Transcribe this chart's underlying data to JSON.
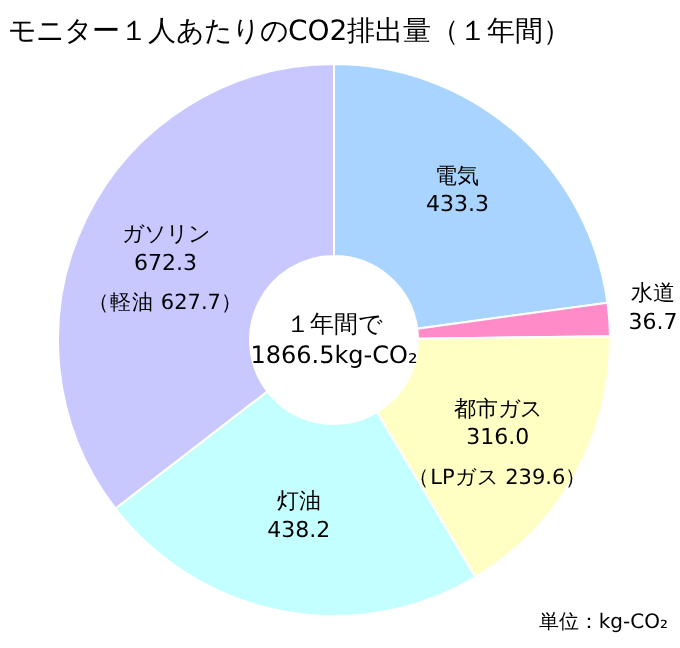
{
  "chart_data": {
    "type": "donut",
    "title": "モニター１人あたりのCO2排出量（１年間）",
    "categories": [
      "電気",
      "水道",
      "都市ガス",
      "灯油",
      "ガソリン"
    ],
    "values": [
      433.3,
      36.7,
      316.0,
      438.2,
      672.3
    ],
    "colors": [
      "#a8d4ff",
      "#ff8cc8",
      "#ffffc4",
      "#c4ffff",
      "#c8c8ff"
    ],
    "value_labels": [
      "433.3",
      "36.7",
      "316.0",
      "438.2",
      "672.3"
    ],
    "annotations": [
      "１年間で\n1866.5kg-CO₂",
      "単位：kg-CO₂",
      {
        "text": "（LPガス 239.6）",
        "x": "都市ガス"
      },
      {
        "text": "（軽油 627.7）",
        "x": "ガソリン"
      }
    ]
  }
}
